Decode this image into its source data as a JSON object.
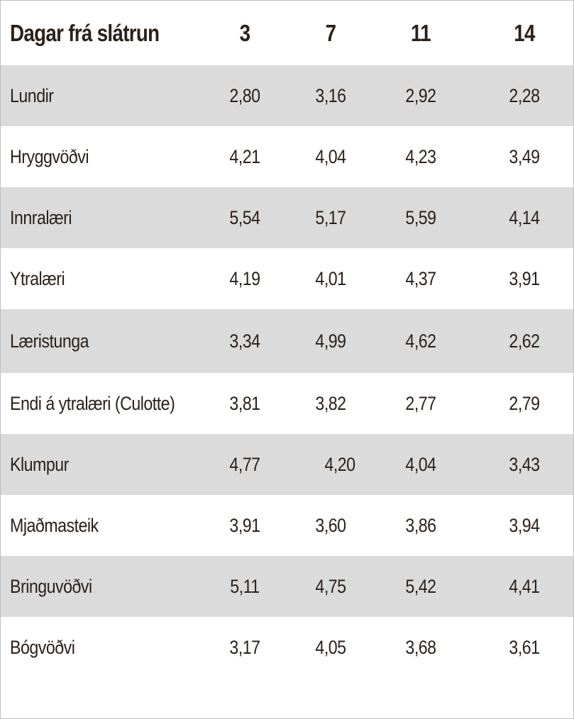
{
  "table": {
    "header": {
      "label": "Dagar frá slátrun",
      "columns": [
        "3",
        "7",
        "11",
        "14"
      ]
    },
    "rows": [
      {
        "label": "Lundir",
        "values": [
          "2,80",
          "3,16",
          "2,92",
          "2,28"
        ]
      },
      {
        "label": "Hryggvöðvi",
        "values": [
          "4,21",
          "4,04",
          "4,23",
          "3,49"
        ]
      },
      {
        "label": "Innralæri",
        "values": [
          "5,54",
          "5,17",
          "5,59",
          "4,14"
        ]
      },
      {
        "label": "Ytralæri",
        "values": [
          "4,19",
          "4,01",
          "4,37",
          "3,91"
        ]
      },
      {
        "label": "Læristunga",
        "values": [
          "3,34",
          "4,99",
          "4,62",
          "2,62"
        ]
      },
      {
        "label": "Endi á ytralæri (Culotte)",
        "values": [
          "3,81",
          "3,82",
          "2,77",
          "2,79"
        ]
      },
      {
        "label": "Klumpur",
        "values": [
          "4,77",
          "4,20",
          "4,04",
          "3,43"
        ]
      },
      {
        "label": "Mjaðmasteik",
        "values": [
          "3,91",
          "3,60",
          "3,86",
          "3,94"
        ]
      },
      {
        "label": "Bringuvöðvi",
        "values": [
          "5,11",
          "4,75",
          "5,42",
          "4,41"
        ]
      },
      {
        "label": "Bógvöðvi",
        "values": [
          "3,17",
          "4,05",
          "3,68",
          "3,61"
        ]
      }
    ],
    "colors": {
      "shaded_row": "#dcdbdc",
      "plain_row": "#ffffff",
      "text": "#2b2119",
      "border": "#bdbdbd"
    }
  }
}
